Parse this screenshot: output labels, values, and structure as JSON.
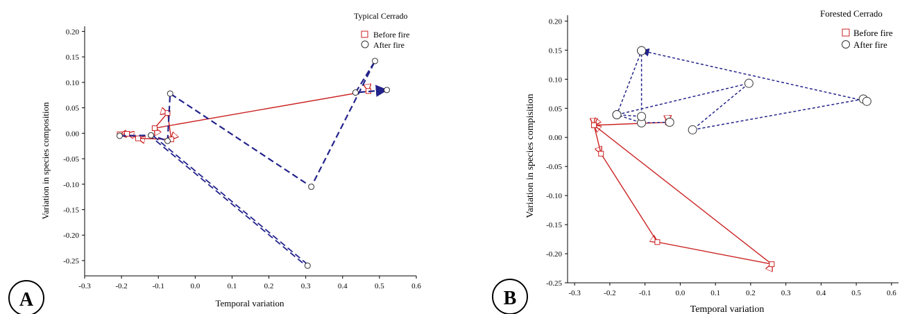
{
  "chart_data": [
    {
      "type": "line",
      "panel_label": "A",
      "title": "Typical Cerrado",
      "xlabel": "Temporal variation",
      "ylabel": "Variation in species composition",
      "xlim": [
        -0.3,
        0.6
      ],
      "ylim": [
        -0.28,
        0.21
      ],
      "x_ticks": [
        -0.3,
        -0.2,
        -0.1,
        0.0,
        0.1,
        0.2,
        0.3,
        0.4,
        0.5,
        0.6
      ],
      "x_tick_labels": [
        "-0.3",
        "-0.2",
        "-0.1",
        "0.0",
        "0.1",
        "0.2",
        "0.3",
        "0.4",
        "0.5",
        "0.6"
      ],
      "y_ticks": [
        0.2,
        0.15,
        0.1,
        0.05,
        0.0,
        -0.05,
        -0.1,
        -0.15,
        -0.2,
        -0.25
      ],
      "y_tick_labels": [
        "0.20",
        "0.15",
        "0.10",
        "0.05",
        "0.00",
        "-0.05",
        "-0.10",
        "-0.15",
        "-0.20",
        "-0.25"
      ],
      "grid": false,
      "legend_position": "top-right",
      "series": [
        {
          "name": "Before fire",
          "color": "#cc2222",
          "line_style": "solid",
          "marker": "square",
          "points": [
            [
              -0.11,
              0.01
            ],
            [
              0.47,
              0.083
            ],
            [
              -0.11,
              0.01
            ],
            [
              -0.075,
              0.04
            ],
            [
              -0.065,
              -0.012
            ],
            [
              -0.155,
              -0.01
            ],
            [
              -0.185,
              -0.001
            ],
            [
              -0.205,
              -0.002
            ]
          ]
        },
        {
          "name": "After fire",
          "color": "#22228b",
          "line_style": "dashed",
          "marker": "circle",
          "points": [
            [
              -0.205,
              -0.005
            ],
            [
              -0.12,
              -0.004
            ],
            [
              -0.075,
              -0.015
            ],
            [
              -0.068,
              0.078
            ],
            [
              0.315,
              -0.105
            ],
            [
              0.488,
              0.142
            ],
            [
              0.435,
              0.08
            ],
            [
              0.52,
              0.085
            ]
          ]
        },
        {
          "name": "",
          "color": "#22228b",
          "line_style": "double-dashed",
          "marker": "circle",
          "points": [
            [
              -0.12,
              -0.004
            ],
            [
              0.305,
              -0.26
            ]
          ]
        }
      ]
    },
    {
      "type": "line",
      "panel_label": "B",
      "title": "Forested Cerrado",
      "xlabel": "Temporal variation",
      "ylabel": "Variation in species compisition",
      "xlim": [
        -0.32,
        0.62
      ],
      "ylim": [
        -0.25,
        0.21
      ],
      "x_ticks": [
        -0.3,
        -0.2,
        -0.1,
        0.0,
        0.1,
        0.2,
        0.3,
        0.4,
        0.5,
        0.6
      ],
      "x_tick_labels": [
        "-0.3",
        "-0.2",
        "-0.1",
        "0.0",
        "0.1",
        "0.2",
        "0.3",
        "0.4",
        "0.5",
        "0.6"
      ],
      "y_ticks": [
        0.2,
        0.15,
        0.1,
        0.05,
        0.0,
        -0.05,
        -0.1,
        -0.15,
        -0.2,
        -0.25
      ],
      "y_tick_labels": [
        "0.20",
        "0.15",
        "0.10",
        "0.05",
        "0.00",
        "-0.05",
        "-0.10",
        "-0.15",
        "-0.20",
        "-0.25"
      ],
      "grid": false,
      "legend_position": "top-right",
      "series": [
        {
          "name": "Before fire",
          "color": "#cc2222",
          "line_style": "solid",
          "marker": "square",
          "points": [
            [
              -0.245,
              0.021
            ],
            [
              -0.035,
              0.026
            ],
            [
              -0.245,
              0.021
            ],
            [
              -0.11,
              0.024
            ],
            [
              -0.245,
              0.021
            ],
            [
              -0.225,
              -0.028
            ],
            [
              -0.065,
              -0.18
            ],
            [
              0.26,
              -0.218
            ],
            [
              -0.245,
              0.021
            ]
          ]
        },
        {
          "name": "After fire",
          "color": "#22228b",
          "line_style": "dotted",
          "marker": "circle",
          "points": [
            [
              -0.03,
              0.026
            ],
            [
              -0.11,
              0.025
            ],
            [
              -0.18,
              0.039
            ],
            [
              -0.11,
              0.149
            ],
            [
              -0.11,
              0.036
            ],
            [
              -0.18,
              0.039
            ],
            [
              0.195,
              0.093
            ],
            [
              0.035,
              0.013
            ],
            [
              0.52,
              0.066
            ],
            [
              0.53,
              0.062
            ],
            [
              -0.11,
              0.149
            ]
          ]
        }
      ]
    }
  ]
}
